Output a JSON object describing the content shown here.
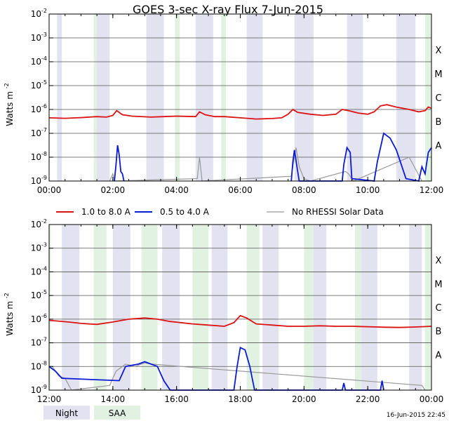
{
  "chart_data": {
    "type": "line",
    "title": "GOES 3-sec X-ray Flux",
    "date": "7-Jun-2015",
    "ylabel": "Watts m",
    "ylabel_exp": "-2",
    "y_scale": "log",
    "ylim": [
      1e-09,
      0.01
    ],
    "y_ticks": [
      {
        "value": -2,
        "mant": "10",
        "exp": "-2"
      },
      {
        "value": -3,
        "mant": "10",
        "exp": "-3"
      },
      {
        "value": -4,
        "mant": "10",
        "exp": "-4"
      },
      {
        "value": -5,
        "mant": "10",
        "exp": "-5"
      },
      {
        "value": -6,
        "mant": "10",
        "exp": "-6"
      },
      {
        "value": -7,
        "mant": "10",
        "exp": "-7"
      },
      {
        "value": -8,
        "mant": "10",
        "exp": "-8"
      },
      {
        "value": -9,
        "mant": "10",
        "exp": "-9"
      }
    ],
    "flare_classes": [
      {
        "label": "X",
        "value": -3.5
      },
      {
        "label": "M",
        "value": -4.5
      },
      {
        "label": "C",
        "value": -5.5
      },
      {
        "label": "B",
        "value": -6.5
      },
      {
        "label": "A",
        "value": -7.5
      }
    ],
    "legend": [
      {
        "label": "1.0 to 8.0 A",
        "color": "#dd1111"
      },
      {
        "label": "0.5 to 4.0 A",
        "color": "#0a1ad6"
      },
      {
        "label": "No RHESSI Solar Data",
        "color": "#999999"
      }
    ],
    "shade_legend": [
      {
        "label": "Night",
        "color": "#e2e2f1"
      },
      {
        "label": "SAA",
        "color": "#e1f1e2"
      }
    ],
    "footer": "16-Jun-2015 22:45",
    "panels": [
      {
        "name": "top",
        "x_range": [
          0,
          12
        ],
        "x_tick_labels": [
          "00:00",
          "02:00",
          "04:00",
          "06:00",
          "08:00",
          "10:00",
          "12:00"
        ],
        "night": [
          [
            0.25,
            0.4
          ],
          [
            1.5,
            1.9
          ],
          [
            3.05,
            3.6
          ],
          [
            4.6,
            5.15
          ],
          [
            6.2,
            6.7
          ],
          [
            7.7,
            8.3
          ],
          [
            9.35,
            9.85
          ],
          [
            10.9,
            11.5
          ]
        ],
        "saa": [
          [
            1.4,
            1.6
          ],
          [
            3.95,
            4.1
          ],
          [
            5.4,
            5.55
          ],
          [
            11.8,
            12.0
          ]
        ],
        "long_series": [
          [
            0,
            -6.35
          ],
          [
            0.5,
            -6.37
          ],
          [
            1.0,
            -6.34
          ],
          [
            1.5,
            -6.3
          ],
          [
            1.8,
            -6.32
          ],
          [
            2.0,
            -6.25
          ],
          [
            2.12,
            -6.05
          ],
          [
            2.3,
            -6.22
          ],
          [
            2.6,
            -6.28
          ],
          [
            3.2,
            -6.32
          ],
          [
            3.6,
            -6.3
          ],
          [
            4.0,
            -6.28
          ],
          [
            4.6,
            -6.3
          ],
          [
            4.72,
            -6.1
          ],
          [
            4.9,
            -6.22
          ],
          [
            5.2,
            -6.3
          ],
          [
            5.5,
            -6.3
          ],
          [
            6.0,
            -6.35
          ],
          [
            6.5,
            -6.4
          ],
          [
            7.0,
            -6.38
          ],
          [
            7.3,
            -6.35
          ],
          [
            7.5,
            -6.2
          ],
          [
            7.65,
            -6.0
          ],
          [
            7.8,
            -6.12
          ],
          [
            8.2,
            -6.2
          ],
          [
            8.6,
            -6.25
          ],
          [
            9.0,
            -6.2
          ],
          [
            9.2,
            -6.0
          ],
          [
            9.4,
            -6.05
          ],
          [
            9.7,
            -6.15
          ],
          [
            10.0,
            -6.2
          ],
          [
            10.2,
            -6.1
          ],
          [
            10.4,
            -5.85
          ],
          [
            10.6,
            -5.8
          ],
          [
            10.9,
            -5.9
          ],
          [
            11.3,
            -6.0
          ],
          [
            11.6,
            -6.1
          ],
          [
            11.8,
            -6.05
          ],
          [
            11.9,
            -5.9
          ],
          [
            12.0,
            -5.95
          ]
        ],
        "short_series": [
          [
            2.05,
            -9.0
          ],
          [
            2.1,
            -8.3
          ],
          [
            2.15,
            -7.5
          ],
          [
            2.2,
            -7.9
          ],
          [
            2.25,
            -8.6
          ],
          [
            2.3,
            -8.7
          ],
          [
            2.35,
            -9.0
          ]
        ],
        "rhessi_gray": [
          [
            1.9,
            -9.0
          ],
          [
            2.0,
            -8.7
          ],
          [
            2.05,
            -9.0
          ],
          [
            4.65,
            -8.9
          ],
          [
            4.72,
            -8.0
          ],
          [
            4.8,
            -9.0
          ],
          [
            7.6,
            -8.8
          ],
          [
            7.75,
            -7.6
          ],
          [
            7.85,
            -8.4
          ],
          [
            8.0,
            -8.9
          ],
          [
            8.2,
            -9.0
          ],
          [
            9.3,
            -8.6
          ],
          [
            9.4,
            -8.7
          ],
          [
            9.55,
            -9.0
          ],
          [
            11.3,
            -8.0
          ],
          [
            11.5,
            -8.5
          ],
          [
            11.7,
            -9.0
          ]
        ],
        "short_series_2": [
          [
            7.6,
            -9.0
          ],
          [
            7.65,
            -8.2
          ],
          [
            7.7,
            -7.7
          ],
          [
            7.8,
            -8.6
          ],
          [
            7.85,
            -9.0
          ],
          [
            9.2,
            -9.0
          ],
          [
            9.25,
            -8.3
          ],
          [
            9.35,
            -7.6
          ],
          [
            9.45,
            -7.8
          ],
          [
            9.5,
            -8.9
          ],
          [
            10.2,
            -9.0
          ],
          [
            10.3,
            -8.2
          ],
          [
            10.5,
            -7.0
          ],
          [
            10.7,
            -7.2
          ],
          [
            10.9,
            -7.7
          ],
          [
            11.0,
            -8.1
          ],
          [
            11.2,
            -8.9
          ],
          [
            11.6,
            -9.0
          ],
          [
            11.7,
            -8.4
          ],
          [
            11.8,
            -8.7
          ],
          [
            11.9,
            -7.8
          ],
          [
            12.0,
            -7.6
          ]
        ]
      },
      {
        "name": "bottom",
        "x_range": [
          12,
          24
        ],
        "x_tick_labels": [
          "12:00",
          "14:00",
          "16:00",
          "18:00",
          "20:00",
          "22:00",
          "00:00"
        ],
        "night": [
          [
            12.4,
            12.95
          ],
          [
            14.0,
            14.55
          ],
          [
            15.55,
            16.1
          ],
          [
            17.1,
            17.6
          ],
          [
            18.7,
            19.2
          ],
          [
            20.3,
            20.7
          ],
          [
            21.8,
            22.3
          ],
          [
            23.3,
            23.7
          ]
        ],
        "saa": [
          [
            12.0,
            12.05
          ],
          [
            13.4,
            13.8
          ],
          [
            14.9,
            15.4
          ],
          [
            16.5,
            17.0
          ],
          [
            18.2,
            18.6
          ],
          [
            20.0,
            20.3
          ],
          [
            21.6,
            21.8
          ],
          [
            23.8,
            24.0
          ]
        ],
        "long_series": [
          [
            12.0,
            -6.05
          ],
          [
            12.6,
            -6.12
          ],
          [
            13.0,
            -6.18
          ],
          [
            13.5,
            -6.22
          ],
          [
            14.0,
            -6.12
          ],
          [
            14.5,
            -6.0
          ],
          [
            15.0,
            -5.95
          ],
          [
            15.4,
            -6.0
          ],
          [
            15.8,
            -6.1
          ],
          [
            16.5,
            -6.2
          ],
          [
            17.0,
            -6.25
          ],
          [
            17.5,
            -6.3
          ],
          [
            17.8,
            -6.15
          ],
          [
            18.0,
            -5.85
          ],
          [
            18.2,
            -5.95
          ],
          [
            18.5,
            -6.2
          ],
          [
            19.0,
            -6.25
          ],
          [
            19.5,
            -6.3
          ],
          [
            20.0,
            -6.3
          ],
          [
            20.5,
            -6.28
          ],
          [
            21.0,
            -6.3
          ],
          [
            21.5,
            -6.3
          ],
          [
            22.0,
            -6.32
          ],
          [
            22.5,
            -6.34
          ],
          [
            23.0,
            -6.35
          ],
          [
            23.5,
            -6.33
          ],
          [
            24.0,
            -6.3
          ]
        ],
        "short_series": [
          [
            12.0,
            -8.0
          ],
          [
            12.2,
            -8.2
          ],
          [
            12.4,
            -8.5
          ],
          [
            14.2,
            -8.6
          ],
          [
            14.4,
            -8.0
          ],
          [
            14.8,
            -7.9
          ],
          [
            15.0,
            -7.8
          ],
          [
            15.4,
            -8.0
          ],
          [
            15.6,
            -8.6
          ],
          [
            15.8,
            -9.0
          ],
          [
            17.8,
            -9.0
          ],
          [
            17.9,
            -8.0
          ],
          [
            18.0,
            -7.2
          ],
          [
            18.15,
            -7.3
          ],
          [
            18.3,
            -8.0
          ],
          [
            18.45,
            -9.0
          ],
          [
            21.2,
            -9.0
          ],
          [
            21.25,
            -8.7
          ],
          [
            21.3,
            -9.0
          ],
          [
            22.4,
            -9.0
          ],
          [
            22.45,
            -8.6
          ],
          [
            22.5,
            -9.0
          ]
        ],
        "rhessi_gray": [
          [
            12.1,
            -8.0
          ],
          [
            12.3,
            -8.4
          ],
          [
            12.5,
            -8.5
          ],
          [
            12.7,
            -9.0
          ],
          [
            13.9,
            -8.8
          ],
          [
            14.1,
            -8.2
          ],
          [
            14.4,
            -7.9
          ],
          [
            14.7,
            -8.0
          ],
          [
            15.0,
            -7.85
          ],
          [
            15.2,
            -7.9
          ],
          [
            23.7,
            -8.8
          ],
          [
            23.8,
            -9.0
          ]
        ]
      }
    ]
  }
}
